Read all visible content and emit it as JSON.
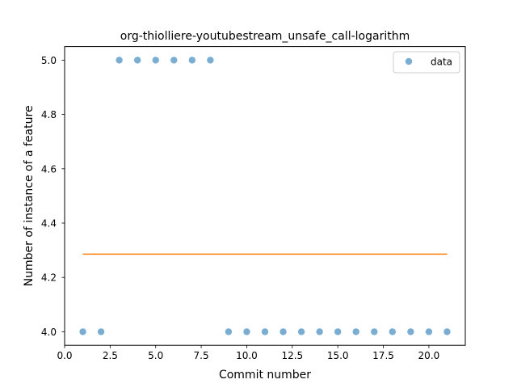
{
  "chart_data": {
    "type": "scatter",
    "title": "org-thiolliere-youtubestream_unsafe_call-logarithm",
    "xlabel": "Commit number",
    "ylabel": "Number of instance of a feature",
    "xlim": [
      0.0,
      22.0
    ],
    "ylim": [
      3.95,
      5.05
    ],
    "x_ticks": [
      "0.0",
      "2.5",
      "5.0",
      "7.5",
      "10.0",
      "12.5",
      "15.0",
      "17.5",
      "20.0"
    ],
    "y_ticks": [
      "4.0",
      "4.2",
      "4.4",
      "4.6",
      "4.8",
      "5.0"
    ],
    "grid": false,
    "legend": {
      "position": "top-right",
      "entries": [
        "data"
      ]
    },
    "series": [
      {
        "name": "data",
        "kind": "scatter",
        "color": "#1f77b4",
        "x": [
          1,
          2,
          3,
          4,
          5,
          6,
          7,
          8,
          9,
          10,
          11,
          12,
          13,
          14,
          15,
          16,
          17,
          18,
          19,
          20,
          21
        ],
        "y": [
          4,
          4,
          5,
          5,
          5,
          5,
          5,
          5,
          4,
          4,
          4,
          4,
          4,
          4,
          4,
          4,
          4,
          4,
          4,
          4,
          4
        ]
      },
      {
        "kind": "line",
        "color": "#ff7f0e",
        "x": [
          1,
          21
        ],
        "y": [
          4.2857,
          4.2857
        ]
      }
    ]
  }
}
